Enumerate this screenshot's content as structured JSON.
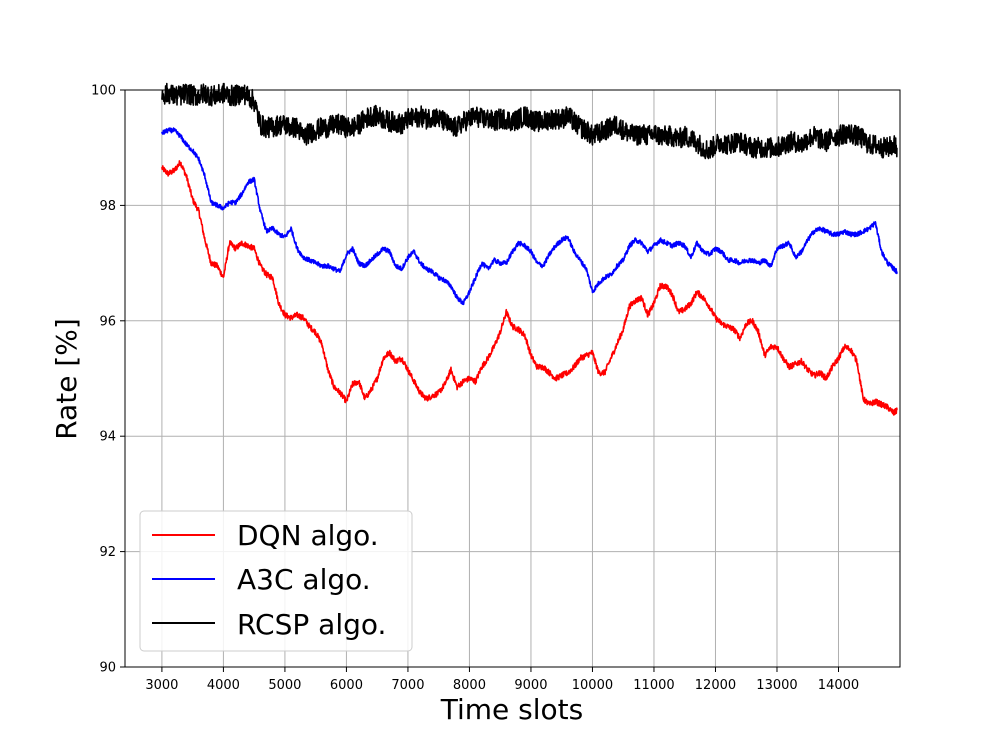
{
  "chart_data": {
    "type": "line",
    "xlabel": "Time slots",
    "ylabel": "Rate [%]",
    "xlim": [
      2400,
      15000
    ],
    "ylim": [
      90,
      100
    ],
    "xticks": [
      3000,
      4000,
      5000,
      6000,
      7000,
      8000,
      9000,
      10000,
      11000,
      12000,
      13000,
      14000
    ],
    "yticks": [
      90,
      92,
      94,
      96,
      98,
      100
    ],
    "grid": true,
    "legend": "lower-left",
    "series": [
      {
        "name": "DQN algo.",
        "color": "#ff0000",
        "noise": 0.05,
        "x": [
          3000,
          3100,
          3200,
          3300,
          3400,
          3500,
          3600,
          3700,
          3800,
          3900,
          4000,
          4100,
          4200,
          4300,
          4400,
          4500,
          4600,
          4700,
          4800,
          4900,
          5000,
          5100,
          5200,
          5300,
          5400,
          5500,
          5600,
          5700,
          5800,
          5900,
          6000,
          6100,
          6200,
          6300,
          6400,
          6500,
          6600,
          6700,
          6800,
          6900,
          7000,
          7100,
          7200,
          7300,
          7400,
          7500,
          7600,
          7700,
          7800,
          7900,
          8000,
          8100,
          8200,
          8300,
          8400,
          8500,
          8600,
          8700,
          8800,
          8900,
          9000,
          9100,
          9200,
          9300,
          9400,
          9500,
          9600,
          9700,
          9800,
          9900,
          10000,
          10100,
          10200,
          10300,
          10400,
          10500,
          10600,
          10700,
          10800,
          10900,
          11000,
          11100,
          11200,
          11300,
          11400,
          11500,
          11600,
          11700,
          11800,
          11900,
          12000,
          12100,
          12200,
          12300,
          12400,
          12500,
          12600,
          12700,
          12800,
          12900,
          13000,
          13100,
          13200,
          13300,
          13400,
          13500,
          13600,
          13700,
          13800,
          13900,
          14000,
          14100,
          14200,
          14300,
          14400,
          14500,
          14600,
          14700,
          14800,
          14900,
          14950
        ],
        "y": [
          98.65,
          98.55,
          98.6,
          98.75,
          98.5,
          98.1,
          97.9,
          97.4,
          97.0,
          96.95,
          96.75,
          97.35,
          97.25,
          97.35,
          97.3,
          97.25,
          96.95,
          96.8,
          96.75,
          96.3,
          96.1,
          96.05,
          96.1,
          96.05,
          95.9,
          95.8,
          95.6,
          95.15,
          94.85,
          94.75,
          94.6,
          94.9,
          94.95,
          94.65,
          94.8,
          95.0,
          95.35,
          95.45,
          95.3,
          95.35,
          95.15,
          94.95,
          94.75,
          94.65,
          94.7,
          94.75,
          94.9,
          95.15,
          94.85,
          94.95,
          95.0,
          94.95,
          95.2,
          95.35,
          95.55,
          95.8,
          96.15,
          95.9,
          95.85,
          95.75,
          95.4,
          95.2,
          95.2,
          95.1,
          95.0,
          95.05,
          95.1,
          95.2,
          95.35,
          95.4,
          95.45,
          95.1,
          95.1,
          95.35,
          95.6,
          95.85,
          96.25,
          96.35,
          96.4,
          96.1,
          96.3,
          96.6,
          96.6,
          96.45,
          96.15,
          96.2,
          96.3,
          96.5,
          96.4,
          96.25,
          96.05,
          95.95,
          95.9,
          95.85,
          95.7,
          95.95,
          96.0,
          95.8,
          95.4,
          95.55,
          95.55,
          95.35,
          95.2,
          95.25,
          95.3,
          95.15,
          95.05,
          95.1,
          95.0,
          95.2,
          95.35,
          95.55,
          95.5,
          95.3,
          94.65,
          94.55,
          94.6,
          94.55,
          94.5,
          94.4,
          94.45
        ]
      },
      {
        "name": "A3C algo.",
        "color": "#0000ff",
        "noise": 0.04,
        "x": [
          3000,
          3100,
          3200,
          3300,
          3400,
          3500,
          3600,
          3700,
          3800,
          3900,
          4000,
          4100,
          4200,
          4300,
          4400,
          4500,
          4600,
          4700,
          4800,
          4900,
          5000,
          5100,
          5200,
          5300,
          5400,
          5500,
          5600,
          5700,
          5800,
          5900,
          6000,
          6100,
          6200,
          6300,
          6400,
          6500,
          6600,
          6700,
          6800,
          6900,
          7000,
          7100,
          7200,
          7300,
          7400,
          7500,
          7600,
          7700,
          7800,
          7900,
          8000,
          8100,
          8200,
          8300,
          8400,
          8500,
          8600,
          8700,
          8800,
          8900,
          9000,
          9100,
          9200,
          9300,
          9400,
          9500,
          9600,
          9700,
          9800,
          9900,
          10000,
          10100,
          10200,
          10300,
          10400,
          10500,
          10600,
          10700,
          10800,
          10900,
          11000,
          11100,
          11200,
          11300,
          11400,
          11500,
          11600,
          11700,
          11800,
          11900,
          12000,
          12100,
          12200,
          12300,
          12400,
          12500,
          12600,
          12700,
          12800,
          12900,
          13000,
          13100,
          13200,
          13300,
          13400,
          13500,
          13600,
          13700,
          13800,
          13900,
          14000,
          14100,
          14200,
          14300,
          14400,
          14500,
          14600,
          14700,
          14800,
          14900,
          14950
        ],
        "y": [
          99.25,
          99.3,
          99.3,
          99.2,
          99.05,
          98.95,
          98.8,
          98.5,
          98.05,
          98.0,
          97.95,
          98.05,
          98.05,
          98.2,
          98.4,
          98.45,
          97.9,
          97.55,
          97.6,
          97.5,
          97.45,
          97.6,
          97.25,
          97.1,
          97.05,
          97.0,
          96.95,
          96.95,
          96.9,
          96.85,
          97.15,
          97.25,
          97.0,
          96.95,
          97.05,
          97.15,
          97.25,
          97.2,
          96.95,
          96.9,
          97.1,
          97.2,
          97.0,
          96.9,
          96.85,
          96.75,
          96.7,
          96.6,
          96.4,
          96.3,
          96.5,
          96.75,
          97.0,
          96.9,
          97.05,
          97.0,
          97.0,
          97.2,
          97.35,
          97.3,
          97.2,
          97.0,
          96.95,
          97.15,
          97.3,
          97.4,
          97.45,
          97.2,
          97.05,
          96.9,
          96.5,
          96.65,
          96.75,
          96.8,
          96.95,
          97.05,
          97.3,
          97.4,
          97.35,
          97.2,
          97.3,
          97.4,
          97.35,
          97.3,
          97.35,
          97.3,
          97.1,
          97.35,
          97.2,
          97.15,
          97.25,
          97.2,
          97.05,
          97.05,
          97.0,
          97.05,
          97.05,
          97.0,
          97.05,
          96.95,
          97.25,
          97.3,
          97.35,
          97.1,
          97.2,
          97.4,
          97.55,
          97.6,
          97.55,
          97.5,
          97.5,
          97.55,
          97.5,
          97.5,
          97.55,
          97.6,
          97.7,
          97.2,
          97.0,
          96.9,
          96.85
        ]
      },
      {
        "name": "RCSP algo.",
        "color": "#000000",
        "noise": 0.18,
        "x": [
          3000,
          3100,
          3200,
          3300,
          3400,
          3500,
          3600,
          3700,
          3800,
          3900,
          4000,
          4100,
          4200,
          4300,
          4400,
          4500,
          4600,
          4700,
          4800,
          4900,
          5000,
          5100,
          5200,
          5300,
          5400,
          5500,
          5600,
          5700,
          5800,
          5900,
          6000,
          6100,
          6200,
          6300,
          6400,
          6500,
          6600,
          6700,
          6800,
          6900,
          7000,
          7100,
          7200,
          7300,
          7400,
          7500,
          7600,
          7700,
          7800,
          7900,
          8000,
          8100,
          8200,
          8300,
          8400,
          8500,
          8600,
          8700,
          8800,
          8900,
          9000,
          9100,
          9200,
          9300,
          9400,
          9500,
          9600,
          9700,
          9800,
          9900,
          10000,
          10100,
          10200,
          10300,
          10400,
          10500,
          10600,
          10700,
          10800,
          10900,
          11000,
          11100,
          11200,
          11300,
          11400,
          11500,
          11600,
          11700,
          11800,
          11900,
          12000,
          12100,
          12200,
          12300,
          12400,
          12500,
          12600,
          12700,
          12800,
          12900,
          13000,
          13100,
          13200,
          13300,
          13400,
          13500,
          13600,
          13700,
          13800,
          13900,
          14000,
          14100,
          14200,
          14300,
          14400,
          14500,
          14600,
          14700,
          14800,
          14900,
          14950
        ],
        "y": [
          99.9,
          99.95,
          99.9,
          99.9,
          99.95,
          99.9,
          99.9,
          99.95,
          99.9,
          99.9,
          99.95,
          99.9,
          99.9,
          99.95,
          99.9,
          99.8,
          99.4,
          99.35,
          99.35,
          99.4,
          99.4,
          99.35,
          99.35,
          99.2,
          99.25,
          99.3,
          99.35,
          99.35,
          99.4,
          99.4,
          99.35,
          99.35,
          99.4,
          99.5,
          99.55,
          99.55,
          99.5,
          99.45,
          99.45,
          99.4,
          99.5,
          99.5,
          99.55,
          99.5,
          99.55,
          99.5,
          99.45,
          99.35,
          99.35,
          99.45,
          99.5,
          99.55,
          99.5,
          99.5,
          99.45,
          99.5,
          99.5,
          99.45,
          99.5,
          99.55,
          99.5,
          99.45,
          99.45,
          99.5,
          99.5,
          99.5,
          99.55,
          99.45,
          99.35,
          99.3,
          99.2,
          99.25,
          99.3,
          99.35,
          99.4,
          99.3,
          99.25,
          99.2,
          99.25,
          99.2,
          99.25,
          99.2,
          99.2,
          99.2,
          99.15,
          99.2,
          99.15,
          99.1,
          99.0,
          98.95,
          99.05,
          99.1,
          99.05,
          99.1,
          99.1,
          99.05,
          99.0,
          99.0,
          99.0,
          99.0,
          99.0,
          99.05,
          99.1,
          99.1,
          99.05,
          99.15,
          99.2,
          99.15,
          99.1,
          99.2,
          99.2,
          99.25,
          99.25,
          99.2,
          99.15,
          99.05,
          99.05,
          99.0,
          99.0,
          99.05,
          99.0
        ]
      }
    ]
  }
}
